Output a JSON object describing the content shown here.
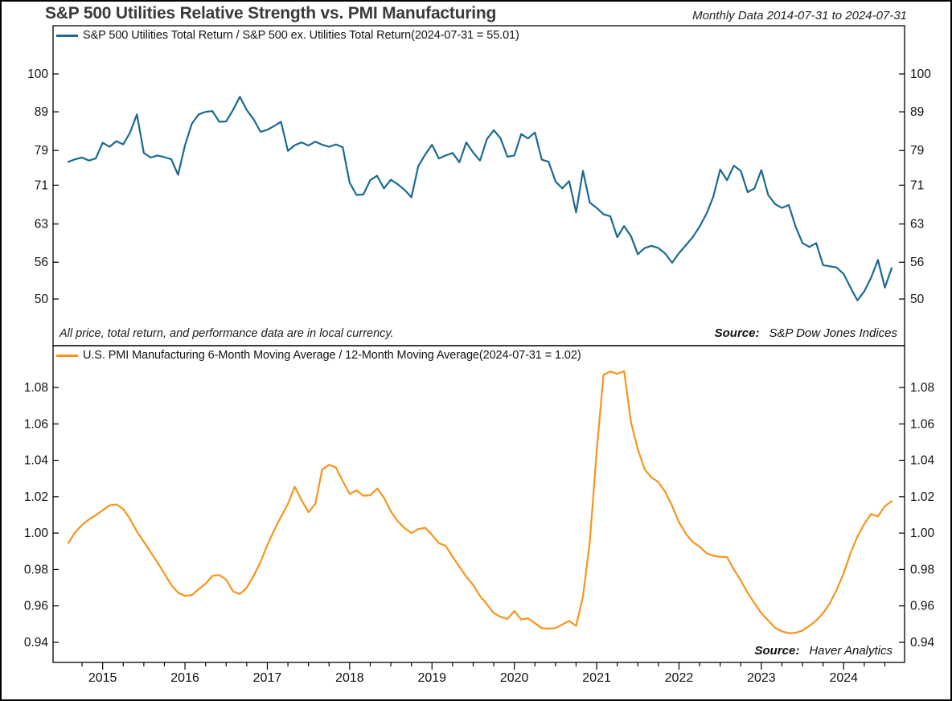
{
  "header": {
    "title": "S&P 500 Utilities Relative Strength vs. PMI Manufacturing",
    "subtitle": "Monthly Data 2014-07-31 to 2024-07-31"
  },
  "top_panel": {
    "legend": "S&P 500 Utilities Total Return / S&P 500 ex. Utilities Total Return(2024-07-31 = 55.01)",
    "note": "All price, total return, and performance data are in local currency.",
    "source_label": "Source:",
    "source": "S&P Dow Jones Indices"
  },
  "bottom_panel": {
    "legend": "U.S. PMI Manufacturing 6-Month Moving Average / 12-Month Moving Average(2024-07-31 = 1.02)",
    "source_label": "Source:",
    "source": "Haver Analytics"
  },
  "x_axis": {
    "year_labels": [
      "2015",
      "2016",
      "2017",
      "2018",
      "2019",
      "2020",
      "2021",
      "2022",
      "2023",
      "2024"
    ]
  },
  "chart_data": [
    {
      "panel": "top",
      "type": "line",
      "title": "S&P 500 Utilities Total Return / S&P 500 ex. Utilities Total Return",
      "latest_point": "2024-07-31 = 55.01",
      "color": "#1a6b8f",
      "scale": "log",
      "frequency": "monthly",
      "x_start": "2014-07-31",
      "x_end": "2024-07-31",
      "y_ticks": [
        "100",
        "89",
        "79",
        "71",
        "63",
        "56",
        "50"
      ],
      "ylim": [
        47.5,
        101
      ],
      "grid": false,
      "values": [
        76.3,
        76.9,
        77.3,
        76.6,
        77.1,
        80.9,
        79.9,
        81.3,
        80.5,
        83.5,
        88.3,
        78.4,
        77.3,
        77.8,
        77.4,
        76.9,
        73.3,
        80.3,
        85.8,
        88.3,
        89.0,
        89.2,
        86.3,
        86.4,
        89.5,
        93.2,
        89.5,
        87.0,
        83.7,
        84.2,
        85.2,
        86.3,
        78.9,
        80.3,
        81.0,
        80.2,
        81.2,
        80.4,
        79.9,
        80.5,
        79.8,
        71.5,
        68.9,
        69.0,
        72.1,
        73.1,
        70.3,
        72.2,
        71.2,
        70.0,
        68.4,
        75.3,
        78.0,
        80.4,
        77.1,
        77.8,
        78.4,
        76.2,
        81.0,
        78.5,
        76.6,
        81.8,
        84.1,
        82.0,
        77.5,
        77.8,
        83.1,
        82.0,
        83.5,
        76.8,
        76.3,
        71.8,
        70.3,
        71.9,
        65.3,
        74.2,
        67.3,
        66.2,
        64.9,
        64.5,
        60.5,
        62.6,
        60.7,
        57.4,
        58.5,
        58.9,
        58.5,
        57.5,
        55.9,
        57.6,
        59.0,
        60.5,
        62.5,
        65.0,
        68.5,
        74.5,
        72.1,
        75.4,
        74.2,
        69.5,
        70.3,
        74.4,
        68.9,
        67.0,
        66.2,
        66.8,
        62.5,
        59.4,
        58.7,
        59.4,
        55.5,
        55.3,
        55.1,
        54.0,
        51.8,
        49.8,
        51.2,
        53.4,
        56.4,
        51.8,
        55.01
      ]
    },
    {
      "panel": "bottom",
      "type": "line",
      "title": "U.S. PMI Manufacturing 6-Month Moving Average / 12-Month Moving Average",
      "latest_point": "2024-07-31 = 1.02",
      "color": "#f7941d",
      "scale": "linear",
      "frequency": "monthly",
      "x_start": "2014-07-31",
      "x_end": "2024-07-31",
      "y_ticks": [
        "1.08",
        "1.06",
        "1.04",
        "1.02",
        "1.00",
        "0.98",
        "0.96",
        "0.94"
      ],
      "ylim": [
        0.932,
        1.092
      ],
      "grid": false,
      "values": [
        0.9945,
        1.0005,
        1.0045,
        1.0075,
        1.0098,
        1.0125,
        1.0152,
        1.0158,
        1.0132,
        1.0078,
        1.0008,
        0.9952,
        0.9895,
        0.9838,
        0.9778,
        0.9715,
        0.9672,
        0.9655,
        0.966,
        0.9692,
        0.9722,
        0.9765,
        0.977,
        0.9745,
        0.968,
        0.9665,
        0.97,
        0.9765,
        0.984,
        0.9935,
        1.0015,
        1.009,
        1.016,
        1.0255,
        1.018,
        1.0115,
        1.016,
        1.035,
        1.0375,
        1.036,
        1.0285,
        1.0215,
        1.0235,
        1.0205,
        1.0208,
        1.0245,
        1.0195,
        1.012,
        1.0065,
        1.0028,
        1.0,
        1.0022,
        1.003,
        0.999,
        0.9945,
        0.993,
        0.987,
        0.9815,
        0.976,
        0.9715,
        0.9655,
        0.961,
        0.956,
        0.954,
        0.9528,
        0.9572,
        0.9525,
        0.9532,
        0.9505,
        0.9478,
        0.9475,
        0.9478,
        0.9498,
        0.9518,
        0.949,
        0.965,
        0.995,
        1.045,
        1.087,
        1.0888,
        1.0875,
        1.089,
        1.061,
        1.046,
        1.035,
        1.0306,
        1.028,
        1.0226,
        1.015,
        1.006,
        0.9996,
        0.9951,
        0.9925,
        0.989,
        0.9875,
        0.987,
        0.9868,
        0.98,
        0.974,
        0.9672,
        0.9615,
        0.956,
        0.952,
        0.948,
        0.946,
        0.945,
        0.9452,
        0.9465,
        0.949,
        0.952,
        0.956,
        0.9615,
        0.969,
        0.978,
        0.989,
        0.998,
        1.005,
        1.0105,
        1.0092,
        1.0148,
        1.0175
      ]
    }
  ]
}
